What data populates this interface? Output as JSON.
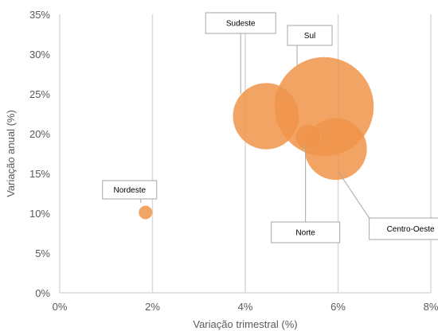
{
  "chart_data": {
    "type": "bubble",
    "xlabel": "Variação trimestral (%)",
    "ylabel": "Variação anual (%)",
    "xlim": [
      0,
      8
    ],
    "ylim": [
      0,
      35
    ],
    "x_ticks": [
      "0%",
      "2%",
      "4%",
      "6%",
      "8%"
    ],
    "y_ticks": [
      "0%",
      "5%",
      "10%",
      "15%",
      "20%",
      "25%",
      "30%",
      "35%"
    ],
    "grid": "vertical",
    "color": "#F0944A",
    "points": [
      {
        "label": "Nordeste",
        "x": 1.85,
        "y": 10.1,
        "size": 1
      },
      {
        "label": "Sudeste",
        "x": 4.45,
        "y": 22.2,
        "size": 25
      },
      {
        "label": "Sul",
        "x": 5.7,
        "y": 23.4,
        "size": 56
      },
      {
        "label": "Centro-Oeste",
        "x": 5.95,
        "y": 18.1,
        "size": 22
      },
      {
        "label": "Norte",
        "x": 5.35,
        "y": 19.6,
        "size": 3.6
      }
    ]
  }
}
